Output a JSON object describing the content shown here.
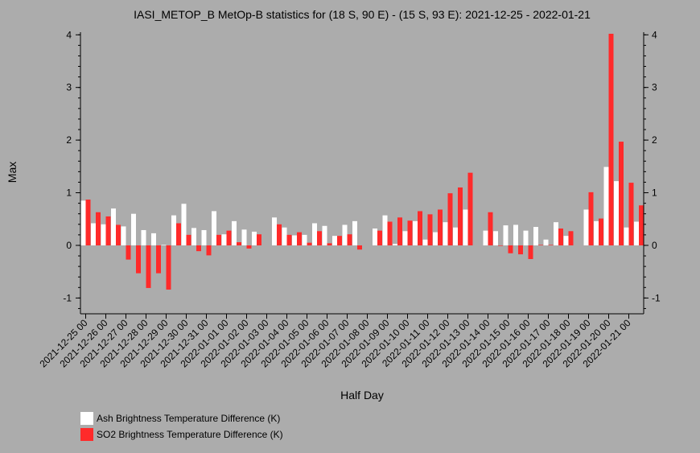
{
  "chart_data": {
    "type": "bar",
    "title": "IASI_METOP_B MetOp-B statistics for (18 S, 90 E) - (15 S, 93 E): 2021-12-25 - 2022-01-21",
    "xlabel": "Half Day",
    "ylabel": "Max",
    "ylim": [
      -1.3,
      4.05
    ],
    "yticks": [
      -1,
      0,
      1,
      2,
      3,
      4
    ],
    "grid": false,
    "legend_position": "bottom-left",
    "categories": [
      "2021-12-25 00",
      "2021-12-25 12",
      "2021-12-26 00",
      "2021-12-26 12",
      "2021-12-27 00",
      "2021-12-27 12",
      "2021-12-28 00",
      "2021-12-28 12",
      "2021-12-29 00",
      "2021-12-29 12",
      "2021-12-30 00",
      "2021-12-30 12",
      "2021-12-31 00",
      "2021-12-31 12",
      "2022-01-01 00",
      "2022-01-01 12",
      "2022-01-02 00",
      "2022-01-02 12",
      "2022-01-03 00",
      "2022-01-03 12",
      "2022-01-04 00",
      "2022-01-04 12",
      "2022-01-05 00",
      "2022-01-05 12",
      "2022-01-06 00",
      "2022-01-06 12",
      "2022-01-07 00",
      "2022-01-07 12",
      "2022-01-08 00",
      "2022-01-08 12",
      "2022-01-09 00",
      "2022-01-09 12",
      "2022-01-10 00",
      "2022-01-10 12",
      "2022-01-11 00",
      "2022-01-11 12",
      "2022-01-12 00",
      "2022-01-12 12",
      "2022-01-13 00",
      "2022-01-13 12",
      "2022-01-14 00",
      "2022-01-14 12",
      "2022-01-15 00",
      "2022-01-15 12",
      "2022-01-16 00",
      "2022-01-16 12",
      "2022-01-17 00",
      "2022-01-17 12",
      "2022-01-18 00",
      "2022-01-18 12",
      "2022-01-19 00",
      "2022-01-19 12",
      "2022-01-20 00",
      "2022-01-20 12",
      "2022-01-21 00",
      "2022-01-21 12"
    ],
    "tick_labels": [
      "2021-12-25 00",
      "2021-12-26 00",
      "2021-12-27 00",
      "2021-12-28 00",
      "2021-12-29 00",
      "2021-12-30 00",
      "2021-12-31 00",
      "2022-01-01 00",
      "2022-01-02 00",
      "2022-01-03 00",
      "2022-01-04 00",
      "2022-01-05 00",
      "2022-01-06 00",
      "2022-01-07 00",
      "2022-01-08 00",
      "2022-01-09 00",
      "2022-01-10 00",
      "2022-01-11 00",
      "2022-01-12 00",
      "2022-01-13 00",
      "2022-01-14 00",
      "2022-01-15 00",
      "2022-01-16 00",
      "2022-01-17 00",
      "2022-01-18 00",
      "2022-01-19 00",
      "2022-01-20 00",
      "2022-01-21 00"
    ],
    "series": [
      {
        "name": "Ash Brightness Temperature Difference (K)",
        "color": "#ffffff",
        "values": [
          0.85,
          0.42,
          0.4,
          0.7,
          0.36,
          0.6,
          0.29,
          0.23,
          0.01,
          0.57,
          0.79,
          0.33,
          0.29,
          0.65,
          0.21,
          0.46,
          0.3,
          0.26,
          null,
          0.53,
          0.34,
          0.19,
          0.2,
          0.42,
          0.37,
          0.18,
          0.39,
          0.46,
          null,
          0.32,
          0.57,
          0.03,
          0.27,
          0.46,
          0.11,
          0.25,
          0.44,
          0.34,
          0.68,
          null,
          0.28,
          0.27,
          0.38,
          0.39,
          0.28,
          0.35,
          0.11,
          0.44,
          0.18,
          null,
          0.68,
          0.46,
          1.49,
          1.22,
          0.34,
          0.45
        ]
      },
      {
        "name": "SO2 Brightness Temperature Difference (K)",
        "color": "#ff2a2a",
        "values": [
          0.87,
          0.63,
          0.55,
          0.39,
          -0.27,
          -0.53,
          -0.81,
          -0.53,
          -0.84,
          0.42,
          0.2,
          -0.11,
          -0.19,
          0.2,
          0.28,
          0.06,
          -0.06,
          0.21,
          null,
          0.4,
          0.2,
          0.25,
          0.05,
          0.27,
          0.04,
          0.18,
          0.21,
          -0.08,
          null,
          0.28,
          0.45,
          0.53,
          0.47,
          0.65,
          0.59,
          0.68,
          0.99,
          1.1,
          1.38,
          null,
          0.63,
          -0.01,
          -0.15,
          -0.17,
          -0.26,
          0.01,
          0.01,
          0.32,
          0.27,
          null,
          1.01,
          0.51,
          4.02,
          1.97,
          1.19,
          0.76
        ]
      }
    ]
  }
}
